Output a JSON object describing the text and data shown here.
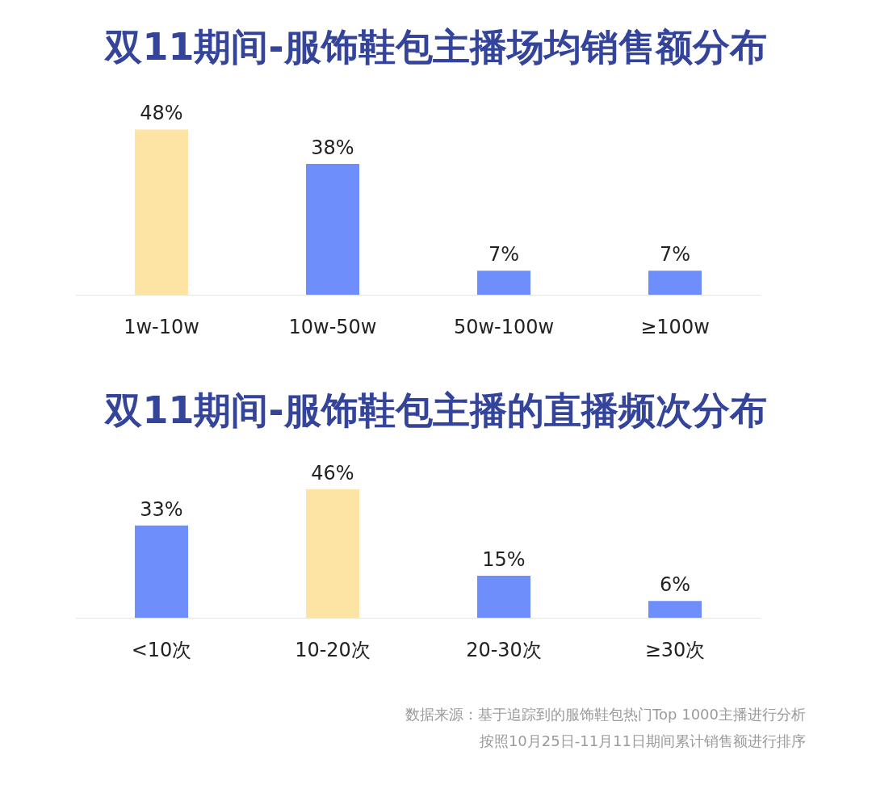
{
  "chart_data": [
    {
      "type": "bar",
      "title": "双11期间-服饰鞋包主播场均销售额分布",
      "categories": [
        "1w-10w",
        "10w-50w",
        "50w-100w",
        "≥100w"
      ],
      "values": [
        48,
        38,
        7,
        7
      ],
      "value_labels": [
        "48%",
        "38%",
        "7%",
        "7%"
      ],
      "colors": [
        "#fde3a4",
        "#6e8efb",
        "#6e8efb",
        "#6e8efb"
      ]
    },
    {
      "type": "bar",
      "title": "双11期间-服饰鞋包主播的直播频次分布",
      "categories": [
        "<10次",
        "10-20次",
        "20-30次",
        "≥30次"
      ],
      "values": [
        33,
        46,
        15,
        6
      ],
      "value_labels": [
        "33%",
        "46%",
        "15%",
        "6%"
      ],
      "colors": [
        "#6e8efb",
        "#fde3a4",
        "#6e8efb",
        "#6e8efb"
      ],
      "annotations": [
        "数据来源：基于追踪到的服饰鞋包热门Top 1000主播进行分析",
        "按照10月25日-11月11日期间累计销售额进行排序"
      ]
    }
  ]
}
